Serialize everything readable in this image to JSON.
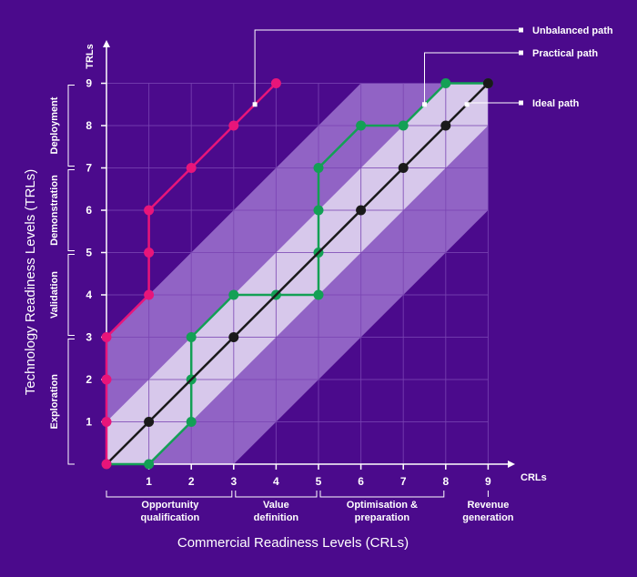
{
  "colors": {
    "background": "#4b0a8c",
    "grid": "#7a45b3",
    "band_outer": "#9d73cf",
    "band_inner": "#ddd0ee",
    "unbalanced": "#e8157a",
    "practical": "#13a055",
    "ideal": "#1a1a1a",
    "axis": "#ffffff"
  },
  "chart_data": {
    "type": "line",
    "xlabel": "Commercial Readiness Levels (CRLs)",
    "ylabel": "Technology Readiness Levels (TRLs)",
    "x_axis_short": "CRLs",
    "y_axis_short": "TRLs",
    "xlim": [
      0,
      9
    ],
    "ylim": [
      0,
      9
    ],
    "x_ticks": [
      "1",
      "2",
      "3",
      "4",
      "5",
      "6",
      "7",
      "8",
      "9"
    ],
    "y_ticks": [
      "1",
      "2",
      "3",
      "4",
      "5",
      "6",
      "7",
      "8",
      "9"
    ],
    "grid": true,
    "series": [
      {
        "name": "Unbalanced path",
        "color": "#e8157a",
        "points": [
          [
            0,
            0
          ],
          [
            0,
            1
          ],
          [
            0,
            2
          ],
          [
            0,
            3
          ],
          [
            1,
            4
          ],
          [
            1,
            5
          ],
          [
            1,
            6
          ],
          [
            2,
            7
          ],
          [
            3,
            8
          ],
          [
            4,
            9
          ]
        ]
      },
      {
        "name": "Practical path",
        "color": "#13a055",
        "points": [
          [
            0,
            0
          ],
          [
            1,
            0
          ],
          [
            2,
            1
          ],
          [
            2,
            2
          ],
          [
            2,
            3
          ],
          [
            3,
            4
          ],
          [
            4,
            4
          ],
          [
            5,
            4
          ],
          [
            5,
            5
          ],
          [
            5,
            6
          ],
          [
            5,
            7
          ],
          [
            6,
            8
          ],
          [
            7,
            8
          ],
          [
            8,
            9
          ],
          [
            9,
            9
          ]
        ]
      },
      {
        "name": "Ideal path",
        "color": "#1a1a1a",
        "points": [
          [
            0,
            0
          ],
          [
            1,
            1
          ],
          [
            3,
            3
          ],
          [
            6,
            6
          ],
          [
            7,
            7
          ],
          [
            8,
            8
          ],
          [
            9,
            9
          ]
        ]
      }
    ],
    "bands": {
      "outer_offset": 3,
      "inner_offset": 1
    },
    "crl_groups": [
      {
        "label": [
          "Opportunity",
          "qualification"
        ],
        "from": 0,
        "to": 3
      },
      {
        "label": [
          "Value",
          "definition"
        ],
        "from": 3,
        "to": 5
      },
      {
        "label": [
          "Optimisation &",
          "preparation"
        ],
        "from": 5,
        "to": 8
      },
      {
        "label": [
          "Revenue",
          "generation"
        ],
        "from": 9,
        "to": 9
      }
    ],
    "trl_groups": [
      {
        "label": "Exploration",
        "from": 0,
        "to": 3
      },
      {
        "label": "Validation",
        "from": 3,
        "to": 5
      },
      {
        "label": "Demonstration",
        "from": 5,
        "to": 7
      },
      {
        "label": "Deployment",
        "from": 7,
        "to": 9
      }
    ],
    "legend_callouts": [
      {
        "series": "Unbalanced path",
        "text": "Unbalanced path",
        "anchor": [
          3.5,
          8.5
        ]
      },
      {
        "series": "Practical path",
        "text": "Practical path",
        "anchor": [
          7.5,
          8.5
        ]
      },
      {
        "series": "Ideal path",
        "text": "Ideal path",
        "anchor": [
          8.5,
          8.5
        ]
      }
    ]
  }
}
